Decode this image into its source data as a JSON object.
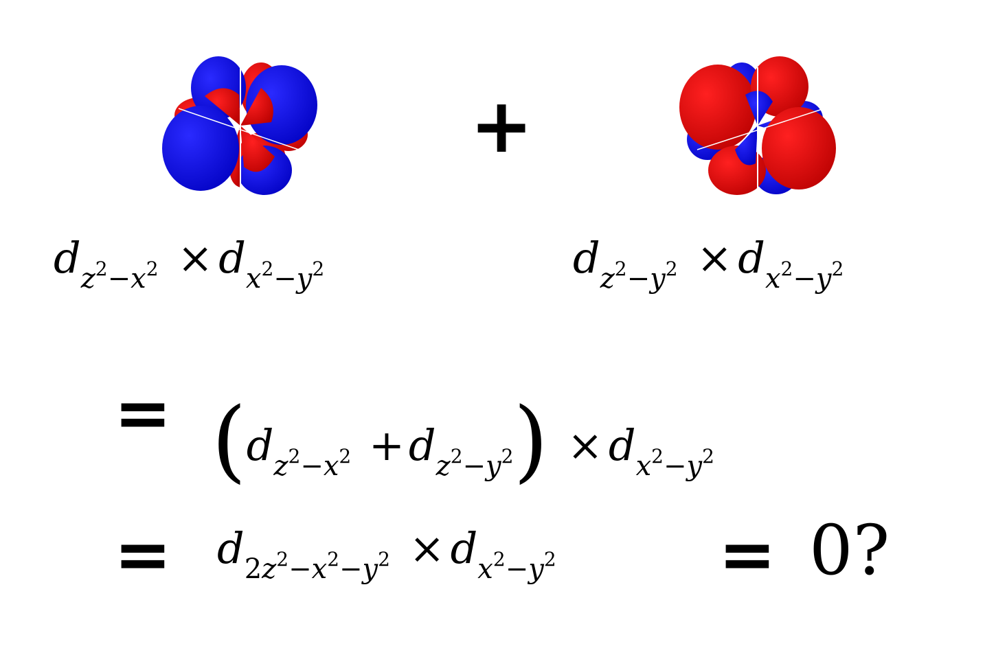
{
  "colors": {
    "positive_lobe": "#ff0000",
    "positive_lobe_dark": "#c40000",
    "negative_lobe": "#0000ff",
    "negative_lobe_dark": "#0000b8",
    "text": "#000000",
    "background": "#ffffff"
  },
  "row1": {
    "plus_sign": "+",
    "left_term": {
      "d": "d",
      "sub_a": "z",
      "sup_a": "2",
      "minus": "−",
      "sub_b": "x",
      "sup_b": "2",
      "times": "×",
      "d2": "d",
      "sub_c": "x",
      "sup_c": "2",
      "minus2": "−",
      "sub_d": "y",
      "sup_d": "2"
    },
    "right_term": {
      "d": "d",
      "sub_a": "z",
      "sup_a": "2",
      "minus": "−",
      "sub_b": "y",
      "sup_b": "2",
      "times": "×",
      "d2": "d",
      "sub_c": "x",
      "sup_c": "2",
      "minus2": "−",
      "sub_d": "y",
      "sup_d": "2"
    }
  },
  "row2": {
    "equals": "=",
    "open_paren": "(",
    "d1": "d",
    "sub1a": "z",
    "sup1a": "2",
    "sub1m": "−",
    "sub1b": "x",
    "sup1b": "2",
    "plus": "+",
    "d2": "d",
    "sub2a": "z",
    "sup2a": "2",
    "sub2m": "−",
    "sub2b": "y",
    "sup2b": "2",
    "close_paren": ")",
    "times": "×",
    "d3": "d",
    "sub3a": "x",
    "sup3a": "2",
    "sub3m": "−",
    "sub3b": "y",
    "sup3b": "2"
  },
  "row3": {
    "equals": "=",
    "d1": "d",
    "sub1coef": "2",
    "sub1a": "z",
    "sup1a": "2",
    "sub1m": "−",
    "sub1b": "x",
    "sup1b": "2",
    "sub1m2": "−",
    "sub1c": "y",
    "sup1c": "2",
    "times": "×",
    "d2": "d",
    "sub2a": "x",
    "sup2a": "2",
    "sub2m": "−",
    "sub2b": "y",
    "sup2b": "2",
    "equals2": "=",
    "result": "0?"
  },
  "orbitals": {
    "left_icon": "orbital-product-blue-dominant",
    "right_icon": "orbital-product-red-dominant"
  }
}
